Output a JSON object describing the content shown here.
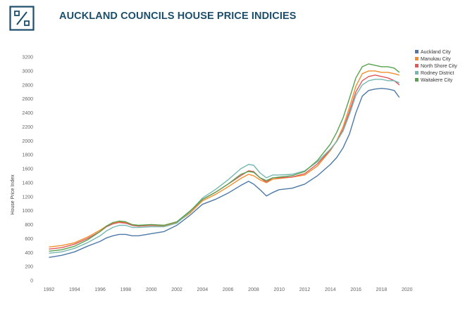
{
  "header": {
    "title": "AUCKLAND COUNCILS HOUSE PRICE INDICIES",
    "logo_color": "#1d4e6b"
  },
  "chart_data": {
    "type": "line",
    "title": "",
    "xlabel": "",
    "ylabel": "House Price Index",
    "xlim": [
      1991.2,
      2020.4
    ],
    "ylim": [
      0,
      3200
    ],
    "xticks": [
      1992,
      1994,
      1996,
      1998,
      2000,
      2002,
      2004,
      2006,
      2008,
      2010,
      2012,
      2014,
      2016,
      2018,
      2020
    ],
    "yticks": [
      0,
      200,
      400,
      600,
      800,
      1000,
      1200,
      1400,
      1600,
      1800,
      2000,
      2200,
      2400,
      2600,
      2800,
      3000,
      3200
    ],
    "grid": false,
    "legend": "top-right",
    "x": [
      1992.0,
      1993.0,
      1994.0,
      1995.0,
      1996.0,
      1996.5,
      1997.0,
      1997.5,
      1998.0,
      1998.5,
      1999.0,
      2000.0,
      2001.0,
      2002.0,
      2003.0,
      2004.0,
      2005.0,
      2006.0,
      2007.0,
      2007.6,
      2008.0,
      2008.5,
      2009.0,
      2009.5,
      2010.0,
      2011.0,
      2012.0,
      2013.0,
      2014.0,
      2014.5,
      2015.0,
      2015.5,
      2016.0,
      2016.5,
      2017.0,
      2017.5,
      2018.0,
      2018.5,
      2019.0,
      2019.4
    ],
    "series": [
      {
        "name": "Auckland City",
        "color": "#4e79a7",
        "values": [
          330,
          360,
          410,
          490,
          560,
          610,
          640,
          660,
          660,
          640,
          640,
          670,
          700,
          790,
          930,
          1090,
          1160,
          1250,
          1360,
          1420,
          1380,
          1300,
          1210,
          1260,
          1300,
          1320,
          1380,
          1500,
          1660,
          1760,
          1900,
          2100,
          2400,
          2640,
          2720,
          2740,
          2750,
          2740,
          2720,
          2620
        ]
      },
      {
        "name": "Manukau City",
        "color": "#f28e2b",
        "values": [
          480,
          500,
          540,
          620,
          720,
          780,
          820,
          840,
          830,
          790,
          780,
          790,
          780,
          830,
          960,
          1140,
          1230,
          1340,
          1460,
          1520,
          1500,
          1440,
          1400,
          1450,
          1460,
          1480,
          1510,
          1640,
          1860,
          2000,
          2200,
          2480,
          2780,
          2960,
          3000,
          3000,
          2980,
          2980,
          2960,
          2940
        ]
      },
      {
        "name": "North Shore City",
        "color": "#e15759",
        "values": [
          450,
          470,
          520,
          600,
          700,
          770,
          810,
          830,
          820,
          790,
          780,
          790,
          790,
          840,
          980,
          1160,
          1260,
          1380,
          1500,
          1570,
          1560,
          1470,
          1410,
          1470,
          1470,
          1480,
          1530,
          1670,
          1870,
          1990,
          2160,
          2420,
          2700,
          2860,
          2920,
          2940,
          2920,
          2900,
          2860,
          2800
        ]
      },
      {
        "name": "Rodney District",
        "color": "#76b7b2",
        "values": [
          390,
          410,
          460,
          540,
          640,
          710,
          760,
          790,
          790,
          760,
          760,
          770,
          770,
          820,
          980,
          1180,
          1300,
          1440,
          1600,
          1660,
          1650,
          1540,
          1470,
          1510,
          1510,
          1520,
          1570,
          1700,
          1880,
          1990,
          2140,
          2380,
          2650,
          2800,
          2860,
          2880,
          2880,
          2860,
          2860,
          2830
        ]
      },
      {
        "name": "Waitakere City",
        "color": "#59a14f",
        "values": [
          420,
          440,
          490,
          580,
          700,
          780,
          830,
          850,
          840,
          800,
          790,
          800,
          790,
          840,
          990,
          1160,
          1260,
          1380,
          1520,
          1560,
          1550,
          1470,
          1430,
          1470,
          1480,
          1500,
          1560,
          1720,
          1950,
          2120,
          2330,
          2610,
          2900,
          3060,
          3100,
          3080,
          3060,
          3060,
          3040,
          2980
        ]
      }
    ]
  }
}
